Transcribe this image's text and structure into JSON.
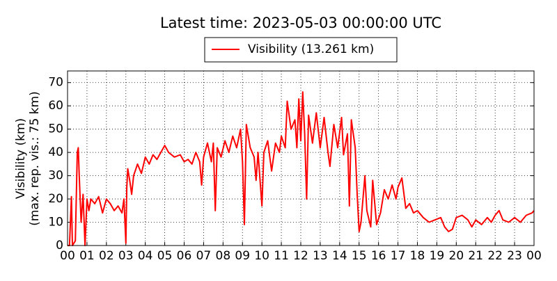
{
  "chart_data": {
    "type": "line",
    "title": "Latest time: 2023-05-03 00:00:00 UTC",
    "ylabel": [
      "Visibility (km)",
      "(max. rep. vis.: 75 km)"
    ],
    "xlim": [
      0,
      24
    ],
    "ylim": [
      0,
      75
    ],
    "xticks": [
      {
        "value": 0,
        "label": "00"
      },
      {
        "value": 1,
        "label": "01"
      },
      {
        "value": 2,
        "label": "02"
      },
      {
        "value": 3,
        "label": "03"
      },
      {
        "value": 4,
        "label": "04"
      },
      {
        "value": 5,
        "label": "05"
      },
      {
        "value": 6,
        "label": "06"
      },
      {
        "value": 7,
        "label": "07"
      },
      {
        "value": 8,
        "label": "08"
      },
      {
        "value": 9,
        "label": "09"
      },
      10,
      11,
      12,
      13,
      14,
      15,
      16,
      17,
      18,
      19,
      20,
      21,
      22,
      23,
      {
        "value": 24,
        "label": "00"
      }
    ],
    "yticks": [
      0,
      10,
      20,
      30,
      40,
      50,
      60,
      70
    ],
    "grid": true,
    "legend": "top",
    "x": [
      0,
      0.1,
      0.2,
      0.25,
      0.4,
      0.5,
      0.55,
      0.6,
      0.7,
      0.8,
      0.9,
      1.0,
      1.1,
      1.2,
      1.4,
      1.6,
      1.8,
      2.0,
      2.2,
      2.4,
      2.6,
      2.8,
      2.9,
      3.0,
      3.05,
      3.1,
      3.2,
      3.3,
      3.4,
      3.6,
      3.8,
      4.0,
      4.2,
      4.4,
      4.6,
      4.8,
      5.0,
      5.2,
      5.5,
      5.8,
      6.0,
      6.2,
      6.4,
      6.6,
      6.8,
      6.9,
      7.0,
      7.2,
      7.4,
      7.5,
      7.6,
      7.7,
      7.9,
      8.1,
      8.3,
      8.5,
      8.7,
      8.9,
      9.0,
      9.1,
      9.2,
      9.4,
      9.6,
      9.7,
      9.8,
      10.0,
      10.1,
      10.3,
      10.5,
      10.7,
      10.9,
      11.0,
      11.2,
      11.3,
      11.5,
      11.7,
      11.8,
      11.9,
      12.0,
      12.1,
      12.2,
      12.3,
      12.4,
      12.6,
      12.8,
      13.0,
      13.2,
      13.4,
      13.5,
      13.7,
      13.9,
      14.1,
      14.2,
      14.4,
      14.5,
      14.6,
      14.8,
      14.9,
      15.0,
      15.1,
      15.3,
      15.4,
      15.6,
      15.7,
      15.9,
      16.1,
      16.3,
      16.5,
      16.7,
      16.9,
      17.0,
      17.2,
      17.4,
      17.6,
      17.8,
      18.0,
      18.3,
      18.6,
      18.9,
      19.2,
      19.4,
      19.6,
      19.8,
      20.0,
      20.3,
      20.6,
      20.8,
      21.0,
      21.3,
      21.6,
      21.8,
      22.0,
      22.2,
      22.4,
      22.7,
      23.0,
      23.3,
      23.6,
      23.9,
      24.0
    ],
    "series": [
      {
        "name": "Visibility (13.261 km)",
        "color": "#ff0000",
        "values": [
          0,
          0,
          21,
          0,
          2,
          40,
          42,
          30,
          10,
          22,
          0,
          20,
          15,
          20,
          18,
          21,
          14,
          20,
          18,
          15,
          17,
          14,
          20,
          1,
          25,
          33,
          28,
          22,
          30,
          35,
          31,
          38,
          35,
          39,
          37,
          40,
          43,
          40,
          38,
          39,
          36,
          37,
          35,
          40,
          36,
          26,
          38,
          44,
          36,
          44,
          15,
          42,
          38,
          45,
          40,
          47,
          42,
          50,
          36,
          9,
          52,
          42,
          38,
          28,
          40,
          17,
          40,
          45,
          32,
          44,
          40,
          47,
          42,
          62,
          50,
          54,
          42,
          63,
          45,
          66,
          48,
          20,
          56,
          44,
          57,
          42,
          55,
          40,
          34,
          52,
          42,
          55,
          39,
          48,
          17,
          54,
          42,
          22,
          6,
          10,
          30,
          15,
          8,
          28,
          9,
          14,
          24,
          20,
          26,
          20,
          25,
          29,
          16,
          18,
          14,
          15,
          12,
          10,
          11,
          12,
          8,
          6,
          7,
          12,
          13,
          11,
          8,
          11,
          9,
          12,
          10,
          13,
          15,
          11,
          10,
          12,
          10,
          13,
          14,
          15
        ]
      }
    ]
  }
}
